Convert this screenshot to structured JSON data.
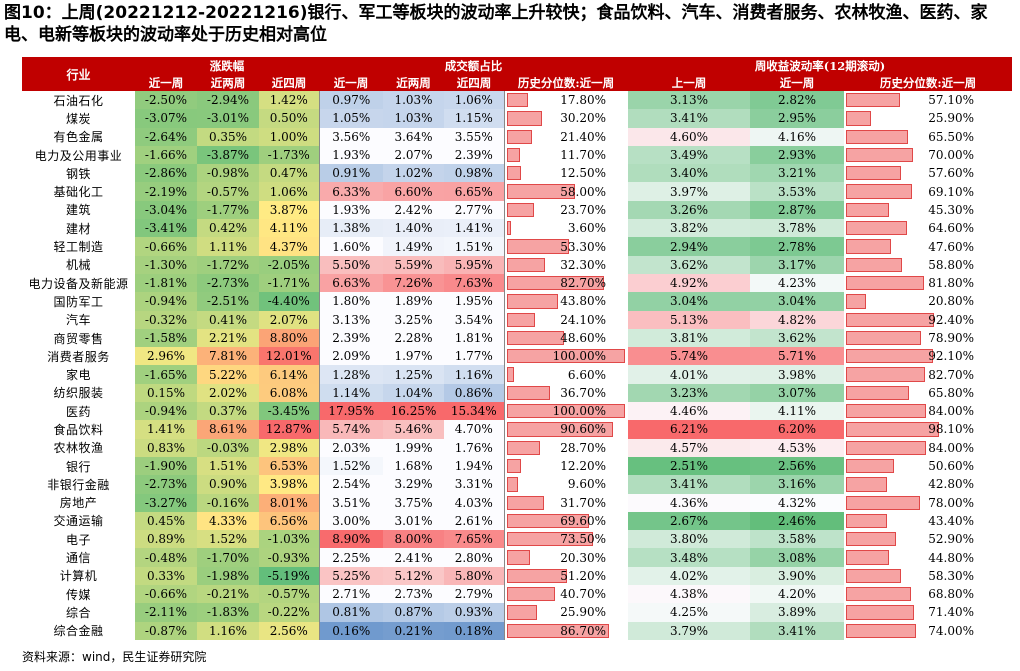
{
  "title": "图10：上周(20221212-20221216)银行、军工等板块的波动率上升较快；食品饮料、汽车、消费者服务、农林牧渔、医药、家电、电新等板块的波动率处于历史相对高位",
  "header": {
    "industry": "行业",
    "group1": "涨跌幅",
    "group2": "成交额占比",
    "group3": "周收益波动率(12期滚动)",
    "cols": [
      "近一周",
      "近两周",
      "近四周",
      "近一周",
      "近两周",
      "近四周",
      "历史分位数:近一周",
      "上一周",
      "近一周",
      "历史分位数:近一周"
    ]
  },
  "rows": [
    {
      "name": "石油石化",
      "v": [
        "-2.50%",
        "-2.94%",
        "1.42%",
        "0.97%",
        "1.03%",
        "1.06%",
        "17.80%",
        "3.13%",
        "2.82%",
        "57.10%"
      ]
    },
    {
      "name": "煤炭",
      "v": [
        "-3.07%",
        "-3.01%",
        "0.50%",
        "1.05%",
        "1.03%",
        "1.15%",
        "30.20%",
        "3.41%",
        "2.95%",
        "25.90%"
      ]
    },
    {
      "name": "有色金属",
      "v": [
        "-2.64%",
        "0.35%",
        "1.00%",
        "3.56%",
        "3.64%",
        "3.55%",
        "21.40%",
        "4.60%",
        "4.16%",
        "65.50%"
      ]
    },
    {
      "name": "电力及公用事业",
      "v": [
        "-1.66%",
        "-3.87%",
        "-1.73%",
        "1.93%",
        "2.07%",
        "2.39%",
        "11.70%",
        "3.49%",
        "2.93%",
        "70.00%"
      ]
    },
    {
      "name": "钢铁",
      "v": [
        "-2.86%",
        "-0.98%",
        "0.47%",
        "0.91%",
        "1.02%",
        "0.98%",
        "12.50%",
        "3.40%",
        "3.21%",
        "57.60%"
      ]
    },
    {
      "name": "基础化工",
      "v": [
        "-2.19%",
        "-0.57%",
        "1.06%",
        "6.33%",
        "6.60%",
        "6.65%",
        "58.00%",
        "3.97%",
        "3.53%",
        "69.10%"
      ]
    },
    {
      "name": "建筑",
      "v": [
        "-3.04%",
        "-1.77%",
        "3.87%",
        "1.93%",
        "2.42%",
        "2.77%",
        "23.70%",
        "3.26%",
        "2.87%",
        "45.30%"
      ]
    },
    {
      "name": "建材",
      "v": [
        "-3.41%",
        "0.42%",
        "4.11%",
        "1.38%",
        "1.40%",
        "1.41%",
        "3.60%",
        "3.82%",
        "3.78%",
        "64.60%"
      ]
    },
    {
      "name": "轻工制造",
      "v": [
        "-0.66%",
        "1.11%",
        "4.37%",
        "1.60%",
        "1.49%",
        "1.51%",
        "53.30%",
        "2.94%",
        "2.78%",
        "47.60%"
      ]
    },
    {
      "name": "机械",
      "v": [
        "-1.30%",
        "-1.72%",
        "-2.05%",
        "5.50%",
        "5.59%",
        "5.95%",
        "32.30%",
        "3.62%",
        "3.17%",
        "58.80%"
      ]
    },
    {
      "name": "电力设备及新能源",
      "v": [
        "-1.81%",
        "-2.73%",
        "-1.71%",
        "6.63%",
        "7.26%",
        "7.63%",
        "82.70%",
        "4.92%",
        "4.23%",
        "81.80%"
      ]
    },
    {
      "name": "国防军工",
      "v": [
        "-0.94%",
        "-2.51%",
        "-4.40%",
        "1.80%",
        "1.89%",
        "1.95%",
        "43.80%",
        "3.04%",
        "3.04%",
        "20.80%"
      ]
    },
    {
      "name": "汽车",
      "v": [
        "-0.32%",
        "0.41%",
        "2.07%",
        "3.13%",
        "3.25%",
        "3.54%",
        "24.10%",
        "5.13%",
        "4.82%",
        "92.40%"
      ]
    },
    {
      "name": "商贸零售",
      "v": [
        "-1.58%",
        "2.21%",
        "8.80%",
        "2.39%",
        "2.28%",
        "1.81%",
        "48.60%",
        "3.81%",
        "3.62%",
        "78.90%"
      ]
    },
    {
      "name": "消费者服务",
      "v": [
        "2.96%",
        "7.81%",
        "12.01%",
        "2.09%",
        "1.97%",
        "1.77%",
        "100.00%",
        "5.74%",
        "5.71%",
        "92.10%"
      ]
    },
    {
      "name": "家电",
      "v": [
        "-1.65%",
        "5.22%",
        "6.14%",
        "1.28%",
        "1.25%",
        "1.16%",
        "6.60%",
        "4.01%",
        "3.98%",
        "82.70%"
      ]
    },
    {
      "name": "纺织服装",
      "v": [
        "0.15%",
        "2.02%",
        "6.08%",
        "1.14%",
        "1.04%",
        "0.86%",
        "36.70%",
        "3.23%",
        "3.07%",
        "65.80%"
      ]
    },
    {
      "name": "医药",
      "v": [
        "-0.94%",
        "0.37%",
        "-3.45%",
        "17.95%",
        "16.25%",
        "15.34%",
        "100.00%",
        "4.46%",
        "4.11%",
        "84.00%"
      ]
    },
    {
      "name": "食品饮料",
      "v": [
        "1.41%",
        "8.61%",
        "12.87%",
        "5.74%",
        "5.46%",
        "4.70%",
        "90.60%",
        "6.21%",
        "6.20%",
        "98.10%"
      ]
    },
    {
      "name": "农林牧渔",
      "v": [
        "0.83%",
        "-0.03%",
        "2.98%",
        "2.03%",
        "1.99%",
        "1.76%",
        "28.70%",
        "4.57%",
        "4.53%",
        "84.00%"
      ]
    },
    {
      "name": "银行",
      "v": [
        "-1.90%",
        "1.51%",
        "6.53%",
        "1.52%",
        "1.68%",
        "1.94%",
        "12.20%",
        "2.51%",
        "2.56%",
        "50.60%"
      ]
    },
    {
      "name": "非银行金融",
      "v": [
        "-2.73%",
        "0.90%",
        "3.98%",
        "2.54%",
        "3.29%",
        "3.31%",
        "9.60%",
        "3.41%",
        "3.16%",
        "42.80%"
      ]
    },
    {
      "name": "房地产",
      "v": [
        "-3.27%",
        "-0.16%",
        "8.01%",
        "3.51%",
        "3.75%",
        "4.03%",
        "31.70%",
        "4.36%",
        "4.32%",
        "78.00%"
      ]
    },
    {
      "name": "交通运输",
      "v": [
        "0.45%",
        "4.33%",
        "6.56%",
        "3.00%",
        "3.01%",
        "2.61%",
        "69.60%",
        "2.67%",
        "2.46%",
        "43.40%"
      ]
    },
    {
      "name": "电子",
      "v": [
        "0.89%",
        "1.52%",
        "-1.03%",
        "8.90%",
        "8.00%",
        "7.65%",
        "73.50%",
        "3.80%",
        "3.58%",
        "52.90%"
      ]
    },
    {
      "name": "通信",
      "v": [
        "-0.48%",
        "-1.70%",
        "-0.93%",
        "2.25%",
        "2.41%",
        "2.80%",
        "20.30%",
        "3.48%",
        "3.08%",
        "44.80%"
      ]
    },
    {
      "name": "计算机",
      "v": [
        "0.33%",
        "-1.98%",
        "-5.19%",
        "5.25%",
        "5.12%",
        "5.80%",
        "51.20%",
        "4.02%",
        "3.90%",
        "58.30%"
      ]
    },
    {
      "name": "传媒",
      "v": [
        "-0.66%",
        "-0.21%",
        "-0.57%",
        "2.71%",
        "2.73%",
        "2.79%",
        "40.70%",
        "4.38%",
        "4.20%",
        "68.80%"
      ]
    },
    {
      "name": "综合",
      "v": [
        "-2.11%",
        "-1.83%",
        "-0.22%",
        "0.81%",
        "0.87%",
        "0.93%",
        "25.90%",
        "4.25%",
        "3.89%",
        "71.40%"
      ]
    },
    {
      "name": "综合金融",
      "v": [
        "-0.87%",
        "1.16%",
        "2.56%",
        "0.16%",
        "0.21%",
        "0.18%",
        "86.70%",
        "3.79%",
        "3.41%",
        "74.00%"
      ]
    }
  ],
  "colors": {
    "header": "#c00000",
    "bar_fill": "#f6a3a3",
    "bar_border": "#e04848"
  },
  "source": "资料来源：wind，民生证券研究院"
}
